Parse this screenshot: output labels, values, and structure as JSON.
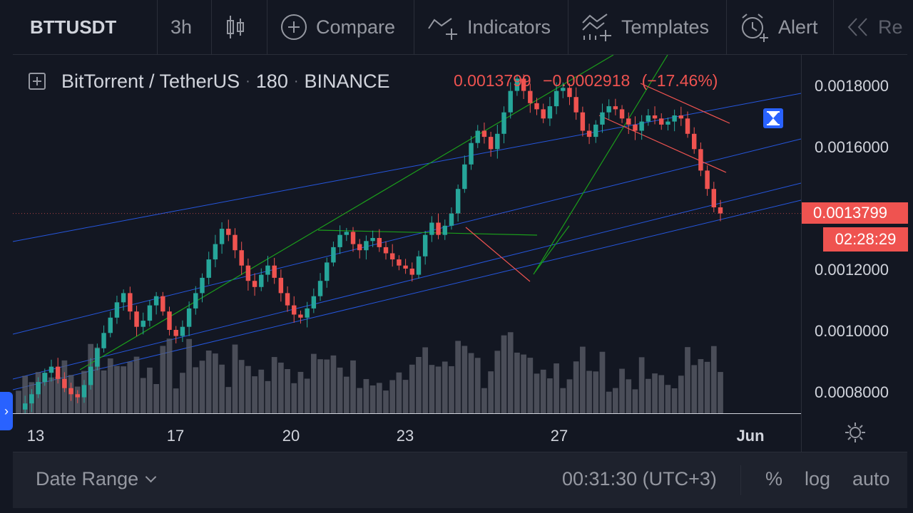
{
  "toolbar": {
    "symbol": "BTTUSDT",
    "timeframe": "3h",
    "compare_label": "Compare",
    "indicators_label": "Indicators",
    "templates_label": "Templates",
    "alert_label": "Alert",
    "replay_label": "Re",
    "icons": [
      "candles-icon",
      "plus-circle-icon",
      "indicators-icon",
      "templates-icon",
      "alarm-clock-icon",
      "rewind-icon"
    ]
  },
  "legend": {
    "name": "BitTorrent / TetherUS",
    "interval": "180",
    "exchange": "BINANCE",
    "sep": "·",
    "last": "0.0013799",
    "change": "−0.0002918",
    "change_pct": "(−17.46%)"
  },
  "price_axis": {
    "labels": [
      "0.0018000",
      "0.0016000",
      "0.0012000",
      "0.0010000",
      "0.0008000"
    ],
    "current_price": "0.0013799",
    "countdown": "02:28:29"
  },
  "time_axis": {
    "labels": [
      "13",
      "17",
      "20",
      "23",
      "27",
      "Jun"
    ]
  },
  "bottom_bar": {
    "date_range_label": "Date Range",
    "clock": "00:31:30 (UTC+3)",
    "percent_label": "%",
    "log_label": "log",
    "auto_label": "auto"
  },
  "colors": {
    "background": "#131722",
    "up": "#26a69a",
    "down": "#ef5350",
    "channel": "#2962ff",
    "trend": "#1b9e1b",
    "volume": "#5d606b"
  },
  "chart_data": {
    "type": "candlestick",
    "symbol": "BTTUSDT",
    "interval": "3h",
    "ylim": [
      0.00074,
      0.00185
    ],
    "x_ticks": [
      "13",
      "17",
      "20",
      "23",
      "27",
      "Jun"
    ],
    "close_path": [
      0.00074,
      0.00076,
      0.00079,
      0.00083,
      0.00086,
      0.00088,
      0.00084,
      0.00081,
      0.00079,
      0.00078,
      0.00082,
      0.00088,
      0.00094,
      0.00099,
      0.00104,
      0.00109,
      0.00112,
      0.00106,
      0.00101,
      0.00103,
      0.00108,
      0.00111,
      0.00106,
      0.001,
      0.00098,
      0.00101,
      0.00107,
      0.00112,
      0.00117,
      0.00123,
      0.00128,
      0.00133,
      0.00131,
      0.00126,
      0.00121,
      0.00116,
      0.00114,
      0.00118,
      0.00121,
      0.00117,
      0.00112,
      0.00108,
      0.00105,
      0.00104,
      0.00107,
      0.00111,
      0.00116,
      0.00122,
      0.00127,
      0.00131,
      0.00132,
      0.00128,
      0.00126,
      0.00129,
      0.0013,
      0.00127,
      0.00125,
      0.00123,
      0.00121,
      0.0012,
      0.00118,
      0.00124,
      0.00131,
      0.00135,
      0.00131,
      0.00134,
      0.00138,
      0.00146,
      0.00154,
      0.00161,
      0.00165,
      0.00163,
      0.00159,
      0.00164,
      0.00171,
      0.00178,
      0.00182,
      0.00178,
      0.00174,
      0.00172,
      0.00169,
      0.00173,
      0.00178,
      0.00179,
      0.00176,
      0.00171,
      0.00165,
      0.00163,
      0.00167,
      0.00171,
      0.00173,
      0.00172,
      0.00169,
      0.00167,
      0.00165,
      0.00168,
      0.0017,
      0.00169,
      0.00167,
      0.00168,
      0.0017,
      0.00169,
      0.00164,
      0.00159,
      0.00152,
      0.00146,
      0.0014,
      0.00138
    ]
  }
}
